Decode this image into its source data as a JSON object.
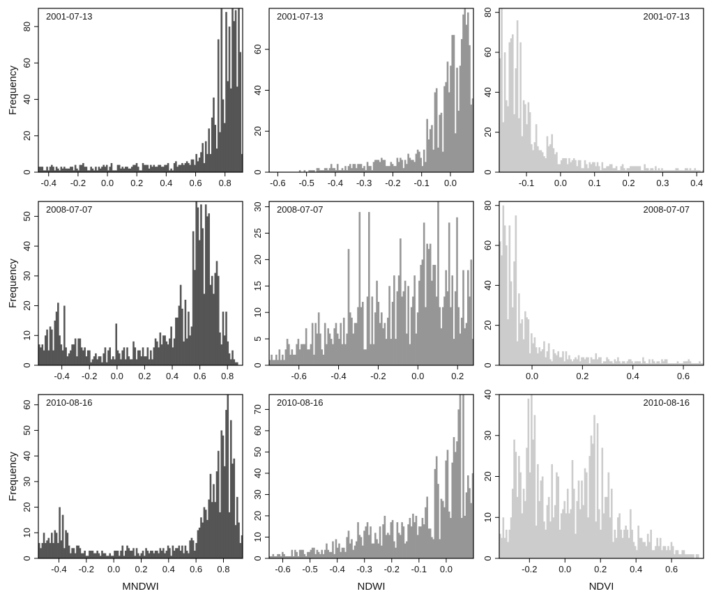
{
  "figure": {
    "ylabel": "Frequency"
  },
  "chart_data": [
    {
      "type": "histogram",
      "row": 0,
      "col": 0,
      "date": "2001-07-13",
      "xlabel": "",
      "color": "#555555",
      "xlim": [
        -0.47,
        0.92
      ],
      "ylim": [
        0,
        90
      ],
      "date_position": "top-left",
      "xticks": [
        -0.4,
        -0.2,
        0.0,
        0.2,
        0.4,
        0.6,
        0.8
      ],
      "xtick_labels": [
        "-0.4",
        "-0.2",
        "0.0",
        "0.2",
        "0.4",
        "0.6",
        "0.8"
      ],
      "yticks": [
        0,
        20,
        40,
        60,
        80
      ],
      "ytick_labels": [
        "0",
        "20",
        "40",
        "60",
        "80"
      ],
      "profile": [
        [
          -0.47,
          2
        ],
        [
          0.5,
          3
        ],
        [
          0.55,
          5
        ],
        [
          0.62,
          8
        ],
        [
          0.7,
          18
        ],
        [
          0.75,
          38
        ],
        [
          0.8,
          55
        ],
        [
          0.84,
          70
        ],
        [
          0.87,
          85
        ],
        [
          0.9,
          60
        ],
        [
          0.92,
          15
        ]
      ],
      "spikes": [
        [
          0.893,
          90
        ],
        [
          0.873,
          89
        ],
        [
          0.832,
          80
        ]
      ]
    },
    {
      "type": "histogram",
      "row": 0,
      "col": 1,
      "date": "2001-07-13",
      "xlabel": "",
      "color": "#969696",
      "xlim": [
        -0.63,
        0.08
      ],
      "ylim": [
        0,
        80
      ],
      "date_position": "top-left",
      "xticks": [
        -0.6,
        -0.5,
        -0.4,
        -0.3,
        -0.2,
        -0.1,
        0.0
      ],
      "xtick_labels": [
        "-0.6",
        "-0.5",
        "-0.4",
        "-0.3",
        "-0.2",
        "-0.1",
        "0.0"
      ],
      "yticks": [
        0,
        20,
        40,
        60
      ],
      "ytick_labels": [
        "0",
        "20",
        "40",
        "60"
      ],
      "profile": [
        [
          -0.63,
          0
        ],
        [
          -0.5,
          0.5
        ],
        [
          -0.4,
          2
        ],
        [
          -0.3,
          3
        ],
        [
          -0.2,
          4
        ],
        [
          -0.1,
          8
        ],
        [
          -0.07,
          15
        ],
        [
          -0.03,
          25
        ],
        [
          0.0,
          40
        ],
        [
          0.03,
          55
        ],
        [
          0.06,
          60
        ],
        [
          0.08,
          15
        ]
      ],
      "spikes": [
        [
          0.06,
          78
        ],
        [
          0.055,
          72
        ],
        [
          0.04,
          65
        ]
      ]
    },
    {
      "type": "histogram",
      "row": 0,
      "col": 2,
      "date": "2001-07-13",
      "xlabel": "",
      "color": "#cccccc",
      "xlim": [
        -0.18,
        0.42
      ],
      "ylim": [
        0,
        82
      ],
      "date_position": "top-right",
      "xticks": [
        -0.1,
        0.0,
        0.1,
        0.2,
        0.3,
        0.4
      ],
      "xtick_labels": [
        "-0.1",
        "0.0",
        "0.1",
        "0.2",
        "0.3",
        "0.4"
      ],
      "yticks": [
        0,
        20,
        40,
        60,
        80
      ],
      "ytick_labels": [
        "0",
        "20",
        "40",
        "60",
        "80"
      ],
      "profile": [
        [
          -0.18,
          60
        ],
        [
          -0.15,
          45
        ],
        [
          -0.12,
          38
        ],
        [
          -0.1,
          30
        ],
        [
          -0.08,
          20
        ],
        [
          -0.05,
          12
        ],
        [
          0.0,
          7
        ],
        [
          0.05,
          4
        ],
        [
          0.1,
          3
        ],
        [
          0.2,
          2
        ],
        [
          0.42,
          1
        ]
      ],
      "spikes": [
        [
          -0.174,
          82
        ],
        [
          -0.127,
          76
        ],
        [
          -0.162,
          60
        ]
      ]
    },
    {
      "type": "histogram",
      "row": 1,
      "col": 0,
      "date": "2008-07-07",
      "xlabel": "",
      "color": "#555555",
      "xlim": [
        -0.57,
        0.91
      ],
      "ylim": [
        0,
        55
      ],
      "date_position": "top-left",
      "xticks": [
        -0.4,
        -0.2,
        0.0,
        0.2,
        0.4,
        0.6,
        0.8
      ],
      "xtick_labels": [
        "-0.4",
        "-0.2",
        "0.0",
        "0.2",
        "0.4",
        "0.6",
        "0.8"
      ],
      "yticks": [
        0,
        10,
        20,
        30,
        40,
        50
      ],
      "ytick_labels": [
        "0",
        "10",
        "20",
        "30",
        "40",
        "50"
      ],
      "profile": [
        [
          -0.57,
          3
        ],
        [
          -0.5,
          8
        ],
        [
          -0.45,
          12
        ],
        [
          -0.4,
          10
        ],
        [
          -0.3,
          6
        ],
        [
          -0.2,
          3
        ],
        [
          0.0,
          3
        ],
        [
          0.2,
          4
        ],
        [
          0.3,
          5
        ],
        [
          0.4,
          8
        ],
        [
          0.5,
          18
        ],
        [
          0.55,
          30
        ],
        [
          0.6,
          38
        ],
        [
          0.65,
          38
        ],
        [
          0.7,
          30
        ],
        [
          0.75,
          18
        ],
        [
          0.8,
          7
        ],
        [
          0.85,
          2
        ],
        [
          0.91,
          0
        ]
      ],
      "spikes": [
        [
          0.641,
          54
        ],
        [
          0.597,
          42
        ],
        [
          -0.431,
          21
        ],
        [
          -0.001,
          14
        ]
      ]
    },
    {
      "type": "histogram",
      "row": 1,
      "col": 1,
      "date": "2008-07-07",
      "xlabel": "",
      "color": "#969696",
      "xlim": [
        -0.75,
        0.28
      ],
      "ylim": [
        0,
        31
      ],
      "date_position": "top-left",
      "xticks": [
        -0.6,
        -0.4,
        -0.2,
        0.0,
        0.2
      ],
      "xtick_labels": [
        "-0.6",
        "-0.4",
        "-0.2",
        "0.0",
        "0.2"
      ],
      "yticks": [
        0,
        5,
        10,
        15,
        20,
        25,
        30
      ],
      "ytick_labels": [
        "0",
        "5",
        "10",
        "15",
        "20",
        "25",
        "30"
      ],
      "profile": [
        [
          -0.75,
          1
        ],
        [
          -0.6,
          3
        ],
        [
          -0.5,
          6
        ],
        [
          -0.4,
          6
        ],
        [
          -0.3,
          7
        ],
        [
          -0.2,
          9
        ],
        [
          -0.1,
          11
        ],
        [
          0.0,
          13
        ],
        [
          0.1,
          15
        ],
        [
          0.15,
          15
        ],
        [
          0.2,
          13
        ],
        [
          0.28,
          10
        ]
      ],
      "spikes": [
        [
          0.105,
          31
        ],
        [
          -0.296,
          29
        ],
        [
          -0.247,
          29
        ],
        [
          0.2,
          28
        ],
        [
          0.03,
          27
        ],
        [
          -0.09,
          24
        ],
        [
          -0.35,
          22
        ]
      ]
    },
    {
      "type": "histogram",
      "row": 1,
      "col": 2,
      "date": "2008-07-07",
      "xlabel": "",
      "color": "#cccccc",
      "xlim": [
        -0.13,
        0.68
      ],
      "ylim": [
        0,
        82
      ],
      "date_position": "top-right",
      "xticks": [
        0.0,
        0.2,
        0.4,
        0.6
      ],
      "xtick_labels": [
        "0.0",
        "0.2",
        "0.4",
        "0.6"
      ],
      "yticks": [
        0,
        20,
        40,
        60,
        80
      ],
      "ytick_labels": [
        "0",
        "20",
        "40",
        "60",
        "80"
      ],
      "profile": [
        [
          -0.13,
          55
        ],
        [
          -0.1,
          45
        ],
        [
          -0.07,
          35
        ],
        [
          -0.05,
          28
        ],
        [
          -0.02,
          15
        ],
        [
          0.0,
          12
        ],
        [
          0.05,
          8
        ],
        [
          0.1,
          5
        ],
        [
          0.2,
          3
        ],
        [
          0.68,
          1
        ]
      ],
      "spikes": [
        [
          -0.117,
          80
        ],
        [
          -0.063,
          75
        ],
        [
          -0.1,
          60
        ]
      ]
    },
    {
      "type": "histogram",
      "row": 2,
      "col": 0,
      "date": "2010-08-16",
      "xlabel": "MNDWI",
      "color": "#555555",
      "xlim": [
        -0.55,
        0.94
      ],
      "ylim": [
        0,
        64
      ],
      "date_position": "top-left",
      "xticks": [
        -0.4,
        -0.2,
        0.0,
        0.2,
        0.4,
        0.6,
        0.8
      ],
      "xtick_labels": [
        "-0.4",
        "-0.2",
        "0.0",
        "0.2",
        "0.4",
        "0.6",
        "0.8"
      ],
      "yticks": [
        0,
        10,
        20,
        30,
        40,
        50,
        60
      ],
      "ytick_labels": [
        "0",
        "10",
        "20",
        "30",
        "40",
        "50",
        "60"
      ],
      "profile": [
        [
          -0.55,
          3
        ],
        [
          -0.5,
          7
        ],
        [
          -0.45,
          10
        ],
        [
          -0.4,
          14
        ],
        [
          -0.35,
          8
        ],
        [
          -0.3,
          4
        ],
        [
          -0.2,
          2
        ],
        [
          0.0,
          2
        ],
        [
          0.4,
          3
        ],
        [
          0.6,
          5
        ],
        [
          0.65,
          15
        ],
        [
          0.7,
          25
        ],
        [
          0.75,
          35
        ],
        [
          0.8,
          42
        ],
        [
          0.85,
          35
        ],
        [
          0.9,
          15
        ],
        [
          0.94,
          5
        ]
      ],
      "spikes": [
        [
          0.835,
          64
        ],
        [
          0.82,
          58
        ],
        [
          -0.395,
          20
        ]
      ]
    },
    {
      "type": "histogram",
      "row": 2,
      "col": 1,
      "date": "2010-08-16",
      "xlabel": "NDWI",
      "color": "#969696",
      "xlim": [
        -0.65,
        0.1
      ],
      "ylim": [
        0,
        77
      ],
      "date_position": "top-left",
      "xticks": [
        -0.6,
        -0.5,
        -0.4,
        -0.3,
        -0.2,
        -0.1,
        0.0
      ],
      "xtick_labels": [
        "-0.6",
        "-0.5",
        "-0.4",
        "-0.3",
        "-0.2",
        "-0.1",
        "0.0"
      ],
      "yticks": [
        0,
        10,
        20,
        30,
        40,
        50,
        60,
        70
      ],
      "ytick_labels": [
        "0",
        "10",
        "20",
        "30",
        "40",
        "50",
        "60",
        "70"
      ],
      "profile": [
        [
          -0.65,
          1
        ],
        [
          -0.5,
          3
        ],
        [
          -0.4,
          5
        ],
        [
          -0.3,
          9
        ],
        [
          -0.2,
          11
        ],
        [
          -0.1,
          15
        ],
        [
          -0.05,
          20
        ],
        [
          0.0,
          30
        ],
        [
          0.05,
          45
        ],
        [
          0.08,
          40
        ],
        [
          0.1,
          25
        ]
      ],
      "spikes": [
        [
          0.063,
          77
        ],
        [
          0.04,
          55
        ]
      ]
    },
    {
      "type": "histogram",
      "row": 2,
      "col": 2,
      "date": "2010-08-16",
      "xlabel": "NDVI",
      "color": "#cccccc",
      "xlim": [
        -0.37,
        0.78
      ],
      "ylim": [
        0,
        40
      ],
      "date_position": "top-right",
      "xticks": [
        -0.2,
        0.0,
        0.2,
        0.4,
        0.6
      ],
      "xtick_labels": [
        "-0.2",
        "0.0",
        "0.2",
        "0.4",
        "0.6"
      ],
      "yticks": [
        0,
        10,
        20,
        30,
        40
      ],
      "ytick_labels": [
        "0",
        "10",
        "20",
        "30",
        "40"
      ],
      "profile": [
        [
          -0.37,
          4
        ],
        [
          -0.3,
          12
        ],
        [
          -0.25,
          18
        ],
        [
          -0.2,
          26
        ],
        [
          -0.15,
          20
        ],
        [
          -0.1,
          18
        ],
        [
          -0.05,
          13
        ],
        [
          0.0,
          12
        ],
        [
          0.05,
          11
        ],
        [
          0.1,
          15
        ],
        [
          0.15,
          24
        ],
        [
          0.2,
          20
        ],
        [
          0.25,
          10
        ],
        [
          0.3,
          7
        ],
        [
          0.4,
          5
        ],
        [
          0.5,
          4
        ],
        [
          0.6,
          2
        ],
        [
          0.78,
          0
        ]
      ],
      "spikes": [
        [
          -0.19,
          40
        ],
        [
          -0.169,
          35
        ],
        [
          0.151,
          30
        ]
      ]
    }
  ]
}
